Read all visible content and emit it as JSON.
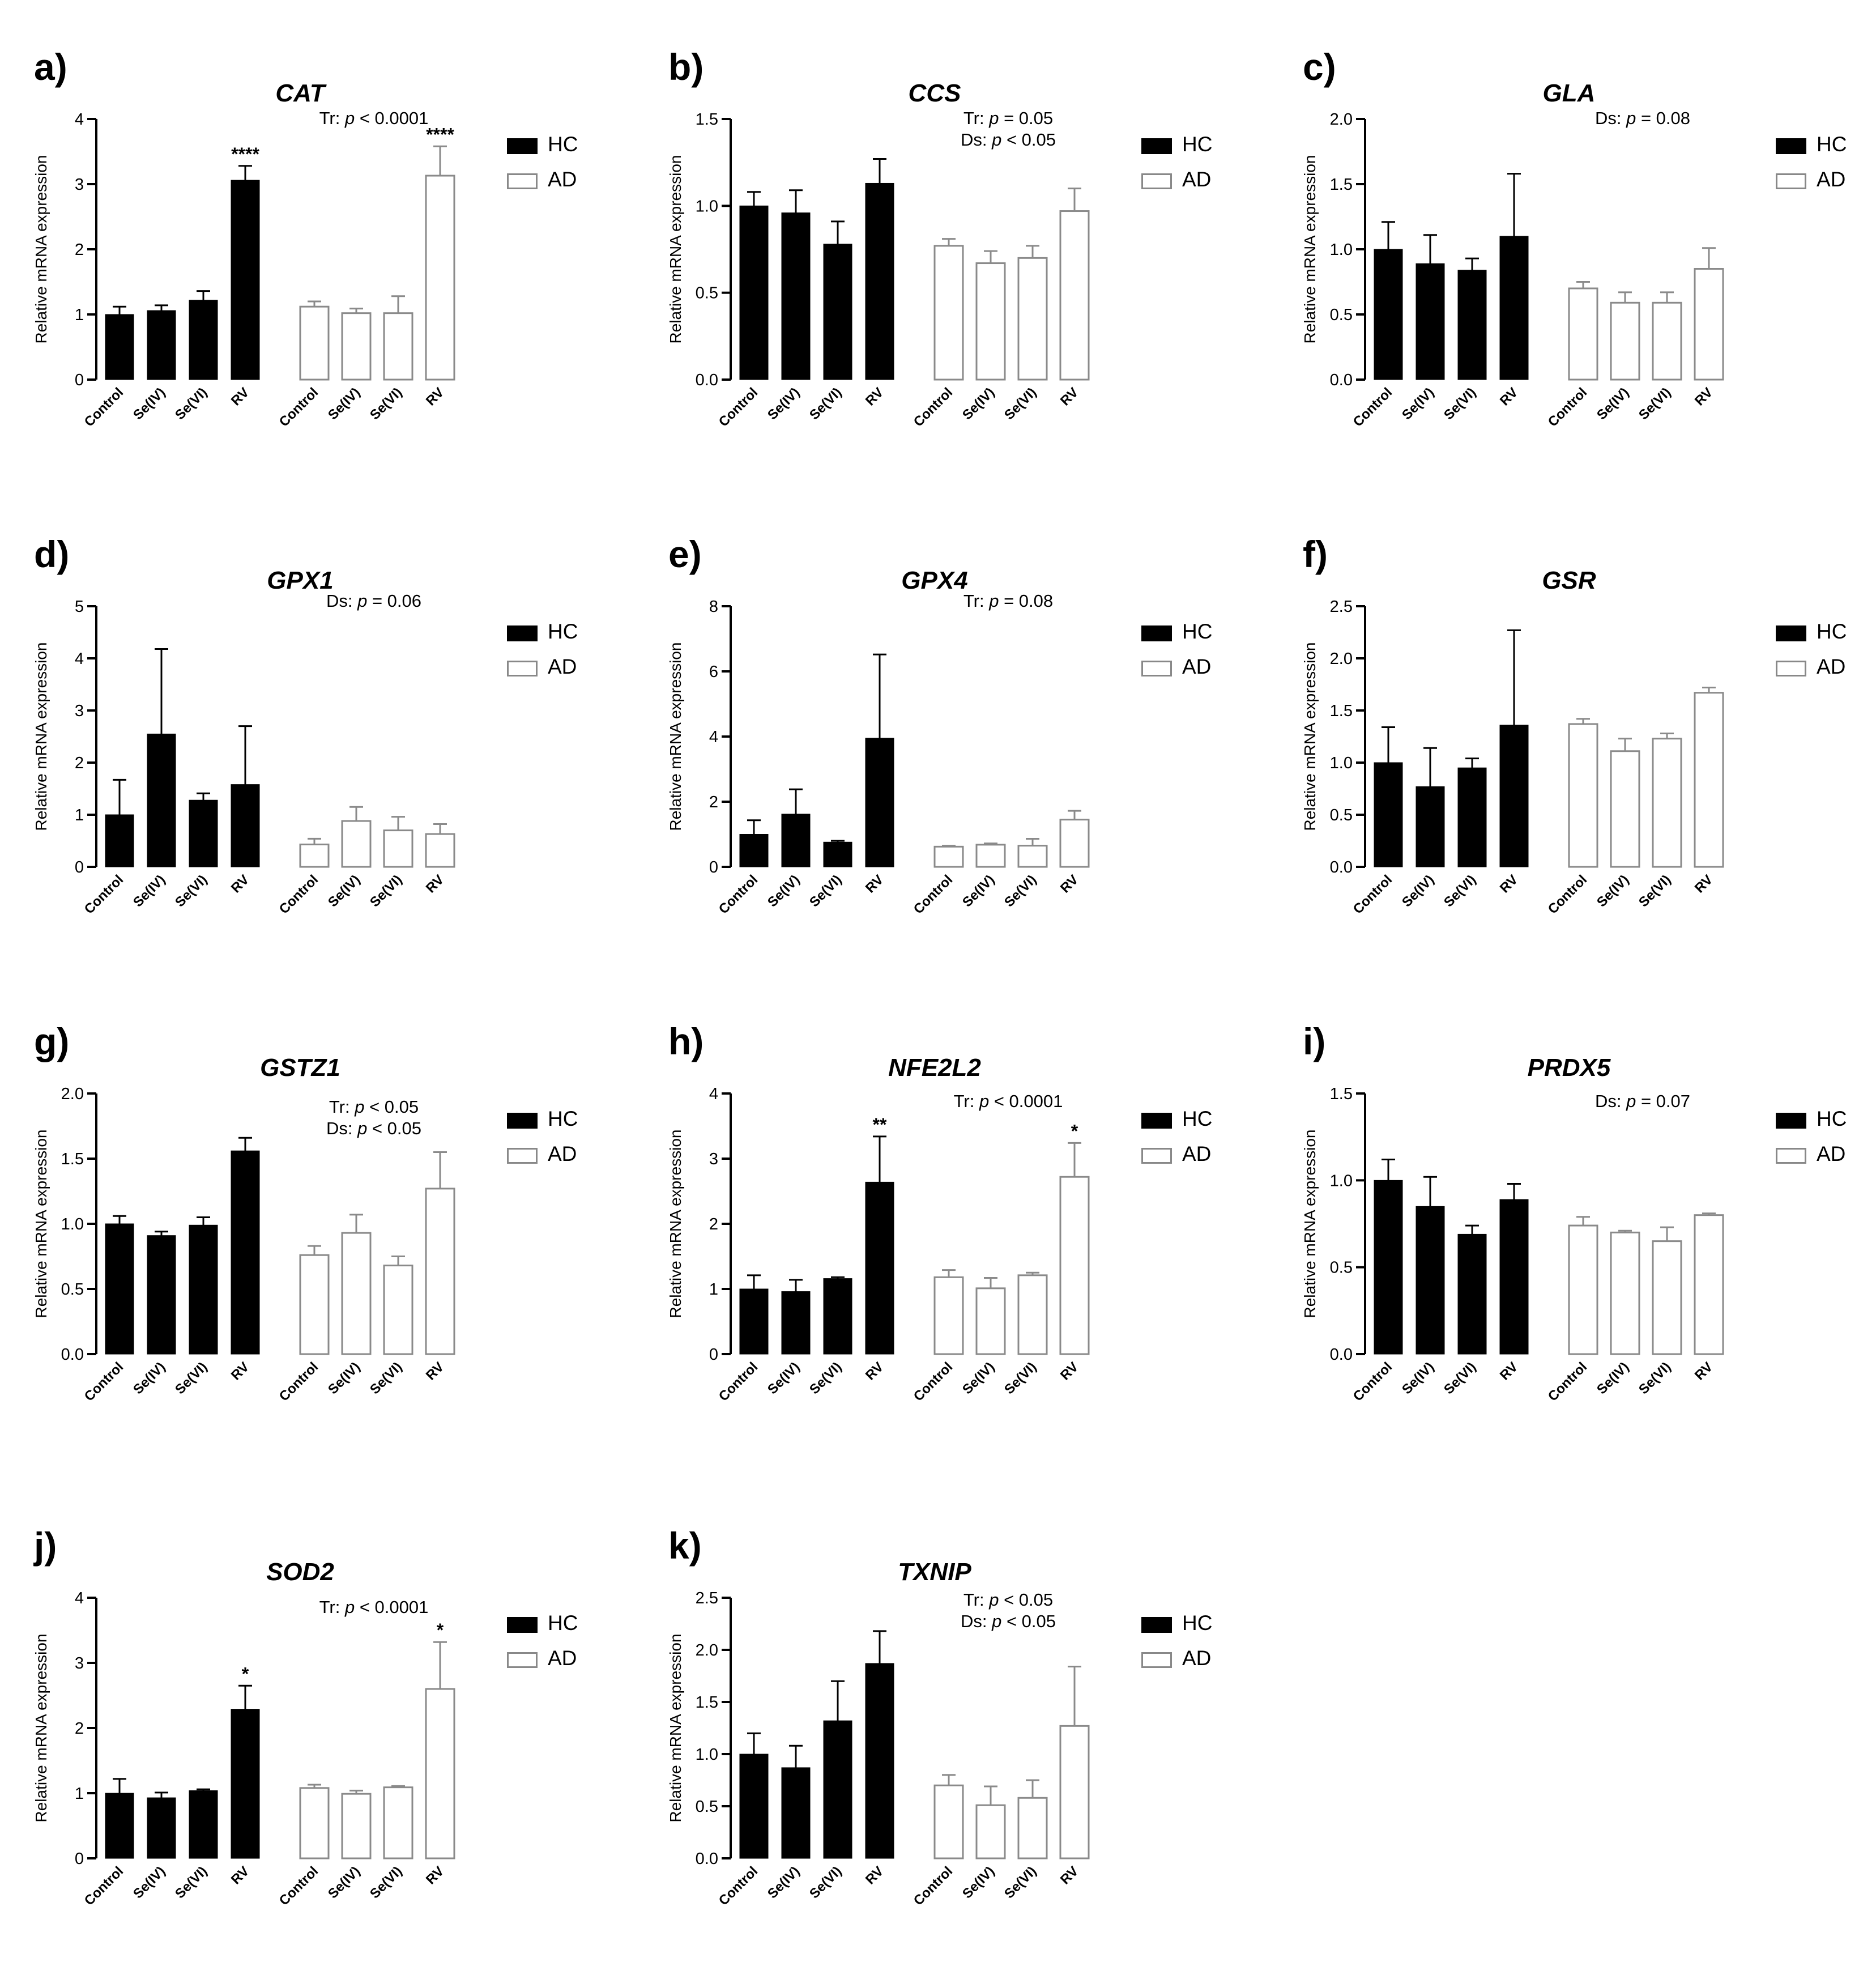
{
  "chart_data": [
    {
      "type": "bar",
      "panel": "a)",
      "title": "CAT",
      "ylabel": "Relative mRNA expression",
      "ylim": [
        0,
        4
      ],
      "yticks": [
        "0",
        "1",
        "2",
        "3",
        "4"
      ],
      "categories": [
        "Control",
        "Se(IV)",
        "Se(VI)",
        "RV"
      ],
      "series": [
        {
          "name": "HC",
          "values": [
            1.0,
            1.06,
            1.22,
            3.06
          ],
          "errors": [
            0.12,
            0.08,
            0.14,
            0.22
          ],
          "sig": [
            "",
            "",
            "",
            "****"
          ]
        },
        {
          "name": "AD",
          "values": [
            1.12,
            1.02,
            1.02,
            3.13
          ],
          "errors": [
            0.08,
            0.07,
            0.26,
            0.45
          ],
          "sig": [
            "",
            "",
            "",
            "****"
          ]
        }
      ],
      "stat_lines": [
        [
          "Tr: ",
          "p",
          " < 0.0001"
        ]
      ]
    },
    {
      "type": "bar",
      "panel": "b)",
      "title": "CCS",
      "ylabel": "Relative mRNA expression",
      "ylim": [
        0,
        1.5
      ],
      "yticks": [
        "0.0",
        "0.5",
        "1.0",
        "1.5"
      ],
      "categories": [
        "Control",
        "Se(IV)",
        "Se(VI)",
        "RV"
      ],
      "series": [
        {
          "name": "HC",
          "values": [
            1.0,
            0.96,
            0.78,
            1.13
          ],
          "errors": [
            0.08,
            0.13,
            0.13,
            0.14
          ],
          "sig": [
            "",
            "",
            "",
            ""
          ]
        },
        {
          "name": "AD",
          "values": [
            0.77,
            0.67,
            0.7,
            0.97
          ],
          "errors": [
            0.04,
            0.07,
            0.07,
            0.13
          ],
          "sig": [
            "",
            "",
            "",
            ""
          ]
        }
      ],
      "stat_lines": [
        [
          "Tr: ",
          "p",
          " = 0.05"
        ],
        [
          "Ds: ",
          "p",
          " < 0.05"
        ]
      ]
    },
    {
      "type": "bar",
      "panel": "c)",
      "title": "GLA",
      "ylabel": "Relative mRNA expression",
      "ylim": [
        0,
        2
      ],
      "yticks": [
        "0.0",
        "0.5",
        "1.0",
        "1.5",
        "2.0"
      ],
      "categories": [
        "Control",
        "Se(IV)",
        "Se(VI)",
        "RV"
      ],
      "series": [
        {
          "name": "HC",
          "values": [
            1.0,
            0.89,
            0.84,
            1.1
          ],
          "errors": [
            0.21,
            0.22,
            0.09,
            0.48
          ],
          "sig": [
            "",
            "",
            "",
            ""
          ]
        },
        {
          "name": "AD",
          "values": [
            0.7,
            0.59,
            0.59,
            0.85
          ],
          "errors": [
            0.05,
            0.08,
            0.08,
            0.16
          ],
          "sig": [
            "",
            "",
            "",
            ""
          ]
        }
      ],
      "stat_lines": [
        [
          "Ds: ",
          "p",
          " = 0.08"
        ]
      ]
    },
    {
      "type": "bar",
      "panel": "d)",
      "title": "GPX1",
      "ylabel": "Relative mRNA expression",
      "ylim": [
        0,
        5
      ],
      "yticks": [
        "0",
        "1",
        "2",
        "3",
        "4",
        "5"
      ],
      "categories": [
        "Control",
        "Se(IV)",
        "Se(VI)",
        "RV"
      ],
      "series": [
        {
          "name": "HC",
          "values": [
            1.0,
            2.55,
            1.28,
            1.58
          ],
          "errors": [
            0.67,
            1.63,
            0.13,
            1.12
          ],
          "sig": [
            "",
            "",
            "",
            ""
          ]
        },
        {
          "name": "AD",
          "values": [
            0.43,
            0.88,
            0.7,
            0.63
          ],
          "errors": [
            0.11,
            0.27,
            0.26,
            0.19
          ],
          "sig": [
            "",
            "",
            "",
            ""
          ]
        }
      ],
      "stat_lines": [
        [
          "Ds: ",
          "p",
          " = 0.06"
        ]
      ]
    },
    {
      "type": "bar",
      "panel": "e)",
      "title": "GPX4",
      "ylabel": "Relative mRNA expression",
      "ylim": [
        0,
        8
      ],
      "yticks": [
        "0",
        "2",
        "4",
        "6",
        "8"
      ],
      "categories": [
        "Control",
        "Se(IV)",
        "Se(VI)",
        "RV"
      ],
      "series": [
        {
          "name": "HC",
          "values": [
            1.0,
            1.62,
            0.76,
            3.95
          ],
          "errors": [
            0.43,
            0.76,
            0.04,
            2.57
          ],
          "sig": [
            "",
            "",
            "",
            ""
          ]
        },
        {
          "name": "AD",
          "values": [
            0.62,
            0.68,
            0.65,
            1.45
          ],
          "errors": [
            0.03,
            0.04,
            0.21,
            0.27
          ],
          "sig": [
            "",
            "",
            "",
            ""
          ]
        }
      ],
      "stat_lines": [
        [
          "Tr: ",
          "p",
          " = 0.08"
        ]
      ]
    },
    {
      "type": "bar",
      "panel": "f)",
      "title": "GSR",
      "ylabel": "Relative mRNA expression",
      "ylim": [
        0,
        2.5
      ],
      "yticks": [
        "0.0",
        "0.5",
        "1.0",
        "1.5",
        "2.0",
        "2.5"
      ],
      "categories": [
        "Control",
        "Se(IV)",
        "Se(VI)",
        "RV"
      ],
      "series": [
        {
          "name": "HC",
          "values": [
            1.0,
            0.77,
            0.95,
            1.36
          ],
          "errors": [
            0.34,
            0.37,
            0.09,
            0.91
          ],
          "sig": [
            "",
            "",
            "",
            ""
          ]
        },
        {
          "name": "AD",
          "values": [
            1.37,
            1.11,
            1.23,
            1.67
          ],
          "errors": [
            0.05,
            0.12,
            0.05,
            0.05
          ],
          "sig": [
            "",
            "",
            "",
            ""
          ]
        }
      ],
      "stat_lines": []
    },
    {
      "type": "bar",
      "panel": "g)",
      "title": "GSTZ1",
      "ylabel": "Relative mRNA expression",
      "ylim": [
        0,
        2
      ],
      "yticks": [
        "0.0",
        "0.5",
        "1.0",
        "1.5",
        "2.0"
      ],
      "categories": [
        "Control",
        "Se(IV)",
        "Se(VI)",
        "RV"
      ],
      "series": [
        {
          "name": "HC",
          "values": [
            1.0,
            0.91,
            0.99,
            1.56
          ],
          "errors": [
            0.06,
            0.03,
            0.06,
            0.1
          ],
          "sig": [
            "",
            "",
            "",
            ""
          ]
        },
        {
          "name": "AD",
          "values": [
            0.76,
            0.93,
            0.68,
            1.27
          ],
          "errors": [
            0.07,
            0.14,
            0.07,
            0.28
          ],
          "sig": [
            "",
            "",
            "",
            ""
          ]
        }
      ],
      "stat_lines": [
        [
          "Tr: ",
          "p",
          " < 0.05"
        ],
        [
          "Ds: ",
          "p",
          " < 0.05"
        ]
      ]
    },
    {
      "type": "bar",
      "panel": "h)",
      "title": "NFE2L2",
      "ylabel": "Relative mRNA expression",
      "ylim": [
        0,
        4
      ],
      "yticks": [
        "0",
        "1",
        "2",
        "3",
        "4"
      ],
      "categories": [
        "Control",
        "Se(IV)",
        "Se(VI)",
        "RV"
      ],
      "series": [
        {
          "name": "HC",
          "values": [
            1.0,
            0.96,
            1.16,
            2.64
          ],
          "errors": [
            0.21,
            0.18,
            0.02,
            0.7
          ],
          "sig": [
            "",
            "",
            "",
            "**"
          ]
        },
        {
          "name": "AD",
          "values": [
            1.18,
            1.01,
            1.21,
            2.72
          ],
          "errors": [
            0.11,
            0.16,
            0.04,
            0.52
          ],
          "sig": [
            "",
            "",
            "",
            "*"
          ]
        }
      ],
      "stat_lines": [
        [
          "Tr: ",
          "p",
          " < 0.0001"
        ]
      ]
    },
    {
      "type": "bar",
      "panel": "i)",
      "title": "PRDX5",
      "ylabel": "Relative mRNA expression",
      "ylim": [
        0,
        1.5
      ],
      "yticks": [
        "0.0",
        "0.5",
        "1.0",
        "1.5"
      ],
      "categories": [
        "Control",
        "Se(IV)",
        "Se(VI)",
        "RV"
      ],
      "series": [
        {
          "name": "HC",
          "values": [
            1.0,
            0.85,
            0.69,
            0.89
          ],
          "errors": [
            0.12,
            0.17,
            0.05,
            0.09
          ],
          "sig": [
            "",
            "",
            "",
            ""
          ]
        },
        {
          "name": "AD",
          "values": [
            0.74,
            0.7,
            0.65,
            0.8
          ],
          "errors": [
            0.05,
            0.01,
            0.08,
            0.01
          ],
          "sig": [
            "",
            "",
            "",
            ""
          ]
        }
      ],
      "stat_lines": [
        [
          "Ds: ",
          "p",
          " = 0.07"
        ]
      ]
    },
    {
      "type": "bar",
      "panel": "j)",
      "title": "SOD2",
      "ylabel": "Relative mRNA expression",
      "ylim": [
        0,
        4
      ],
      "yticks": [
        "0",
        "1",
        "2",
        "3",
        "4"
      ],
      "categories": [
        "Control",
        "Se(IV)",
        "Se(VI)",
        "RV"
      ],
      "series": [
        {
          "name": "HC",
          "values": [
            1.0,
            0.93,
            1.04,
            2.29
          ],
          "errors": [
            0.22,
            0.08,
            0.02,
            0.36
          ],
          "sig": [
            "",
            "",
            "",
            "*"
          ]
        },
        {
          "name": "AD",
          "values": [
            1.08,
            0.99,
            1.09,
            2.6
          ],
          "errors": [
            0.05,
            0.05,
            0.02,
            0.72
          ],
          "sig": [
            "",
            "",
            "",
            "*"
          ]
        }
      ],
      "stat_lines": [
        [
          "Tr: ",
          "p",
          " < 0.0001"
        ]
      ]
    },
    {
      "type": "bar",
      "panel": "k)",
      "title": "TXNIP",
      "ylabel": "Relative mRNA expression",
      "ylim": [
        0,
        2.5
      ],
      "yticks": [
        "0.0",
        "0.5",
        "1.0",
        "1.5",
        "2.0",
        "2.5"
      ],
      "categories": [
        "Control",
        "Se(IV)",
        "Se(VI)",
        "RV"
      ],
      "series": [
        {
          "name": "HC",
          "values": [
            1.0,
            0.87,
            1.32,
            1.87
          ],
          "errors": [
            0.2,
            0.21,
            0.38,
            0.31
          ],
          "sig": [
            "",
            "",
            "",
            ""
          ]
        },
        {
          "name": "AD",
          "values": [
            0.7,
            0.51,
            0.58,
            1.27
          ],
          "errors": [
            0.1,
            0.18,
            0.17,
            0.57
          ],
          "sig": [
            "",
            "",
            "",
            ""
          ]
        }
      ],
      "stat_lines": [
        [
          "Tr: ",
          "p",
          " < 0.05"
        ],
        [
          "Ds: ",
          "p",
          " < 0.05"
        ]
      ]
    }
  ],
  "colors": {
    "hc_fill": "#000000",
    "ad_fill": "#ffffff",
    "ad_stroke": "#8a8a8a",
    "axis": "#000000"
  }
}
